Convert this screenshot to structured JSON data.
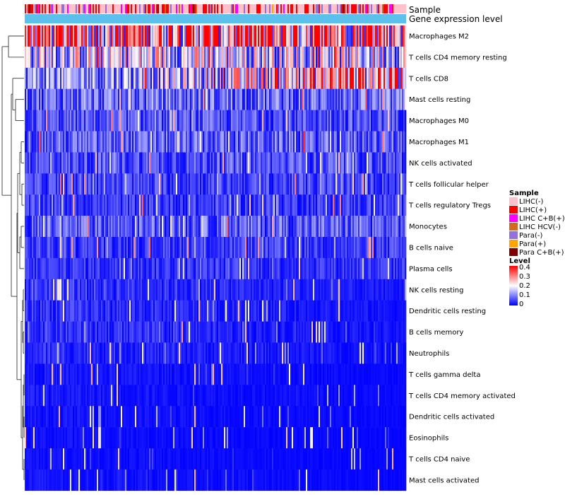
{
  "chart_data": {
    "type": "heatmap",
    "title": "",
    "annotations": [
      {
        "key": "sample",
        "label": "Sample"
      },
      {
        "key": "expression",
        "label": "Gene expression level",
        "color": "#5bc0eb"
      }
    ],
    "rows": [
      {
        "label": "Macrophages M2",
        "mean": 0.3
      },
      {
        "label": "T cells CD4 memory resting",
        "mean": 0.17
      },
      {
        "label": "T cells CD8",
        "mean": 0.11
      },
      {
        "label": "Mast cells resting",
        "mean": 0.08
      },
      {
        "label": "Macrophages M0",
        "mean": 0.06
      },
      {
        "label": "Macrophages M1",
        "mean": 0.07
      },
      {
        "label": "NK cells activated",
        "mean": 0.06
      },
      {
        "label": "T cells follicular helper",
        "mean": 0.05
      },
      {
        "label": "T cells regulatory  Tregs",
        "mean": 0.045
      },
      {
        "label": "Monocytes",
        "mean": 0.07
      },
      {
        "label": "B cells naive",
        "mean": 0.045
      },
      {
        "label": "Plasma cells",
        "mean": 0.04
      },
      {
        "label": "NK cells resting",
        "mean": 0.03
      },
      {
        "label": "Dendritic cells resting",
        "mean": 0.025
      },
      {
        "label": "B cells memory",
        "mean": 0.025
      },
      {
        "label": "Neutrophils",
        "mean": 0.022
      },
      {
        "label": "T cells gamma delta",
        "mean": 0.012
      },
      {
        "label": "T cells CD4 memory activated",
        "mean": 0.012
      },
      {
        "label": "Dendritic cells activated",
        "mean": 0.01
      },
      {
        "label": "Eosinophils",
        "mean": 0.008
      },
      {
        "label": "T cells CD4 naive",
        "mean": 0.008
      },
      {
        "label": "Mast cells activated",
        "mean": 0.01
      }
    ],
    "sample_groups": [
      {
        "label": "LIHC(-)",
        "color": "#ffc0cb"
      },
      {
        "label": "LIHC(+)",
        "color": "#ff0000"
      },
      {
        "label": "LIHC C+B(+)",
        "color": "#ff00ff"
      },
      {
        "label": "LIHC HCV(-)",
        "color": "#d2691e"
      },
      {
        "label": "Para(-)",
        "color": "#9370db"
      },
      {
        "label": "Para(+)",
        "color": "#ffa500"
      },
      {
        "label": "Para C+B(+)",
        "color": "#800000"
      }
    ],
    "legend_sample_title": "Sample",
    "legend_level_title": "Level",
    "level_ticks": [
      "0.4",
      "0.3",
      "0.2",
      "0.1",
      "0"
    ],
    "level_range": [
      0,
      0.4
    ],
    "color_scale": [
      "#0000ff",
      "#ffffff",
      "#ff0000"
    ]
  }
}
